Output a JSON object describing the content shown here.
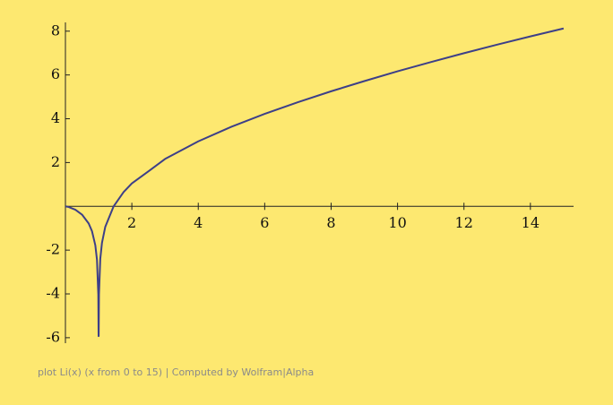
{
  "chart_data": {
    "type": "line",
    "caption": "plot Li(x) (x from 0 to 15) | Computed by Wolfram|Alpha",
    "x": [
      0,
      0.1,
      0.3,
      0.5,
      0.7,
      0.8,
      0.9,
      0.95,
      0.99,
      0.9985,
      1.0015,
      1.01,
      1.05,
      1.1,
      1.2,
      1.45137,
      1.75,
      2,
      2.5,
      3,
      4,
      5,
      6,
      7,
      8,
      9,
      10,
      11,
      12,
      13,
      14,
      15
    ],
    "series": [
      {
        "color": "#3d3f88",
        "values": [
          0,
          -0.032,
          -0.157,
          -0.379,
          -0.781,
          -1.134,
          -1.776,
          -2.444,
          -4.033,
          -5.93,
          -5.924,
          -4.023,
          -2.394,
          -1.676,
          -0.934,
          0,
          0.646,
          1.045,
          1.6,
          2.164,
          2.968,
          3.635,
          4.222,
          4.757,
          5.254,
          5.72,
          6.166,
          6.588,
          6.994,
          7.384,
          7.76,
          8.124
        ]
      }
    ],
    "xlim": [
      0,
      15.3
    ],
    "ylim": [
      -6.25,
      8.4
    ],
    "xticks": [
      2,
      4,
      6,
      8,
      10,
      12,
      14
    ],
    "yticks": [
      -6,
      -4,
      -2,
      2,
      4,
      6,
      8
    ]
  }
}
